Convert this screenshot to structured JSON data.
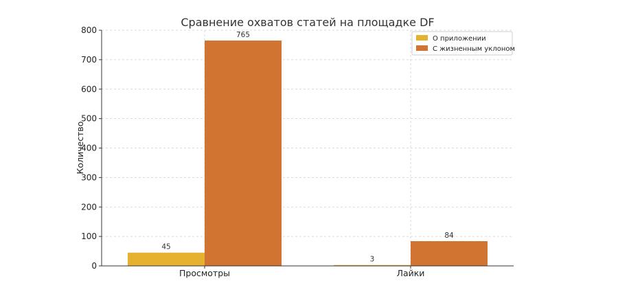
{
  "chart_data": {
    "type": "bar",
    "title": "Сравнение охватов статей на площадке DF",
    "xlabel": "",
    "ylabel": "Количество",
    "categories": [
      "Просмотры",
      "Лайки"
    ],
    "series": [
      {
        "name": "О приложении",
        "values": [
          45,
          3
        ],
        "color": "#e6b12e"
      },
      {
        "name": "С жизненным уклоном",
        "values": [
          765,
          84
        ],
        "color": "#d27431"
      }
    ],
    "ylim": [
      0,
      800
    ],
    "yticks": [
      "0",
      "100",
      "200",
      "300",
      "400",
      "500",
      "600",
      "700",
      "800"
    ],
    "grid": true,
    "legend_position": "top-right"
  }
}
